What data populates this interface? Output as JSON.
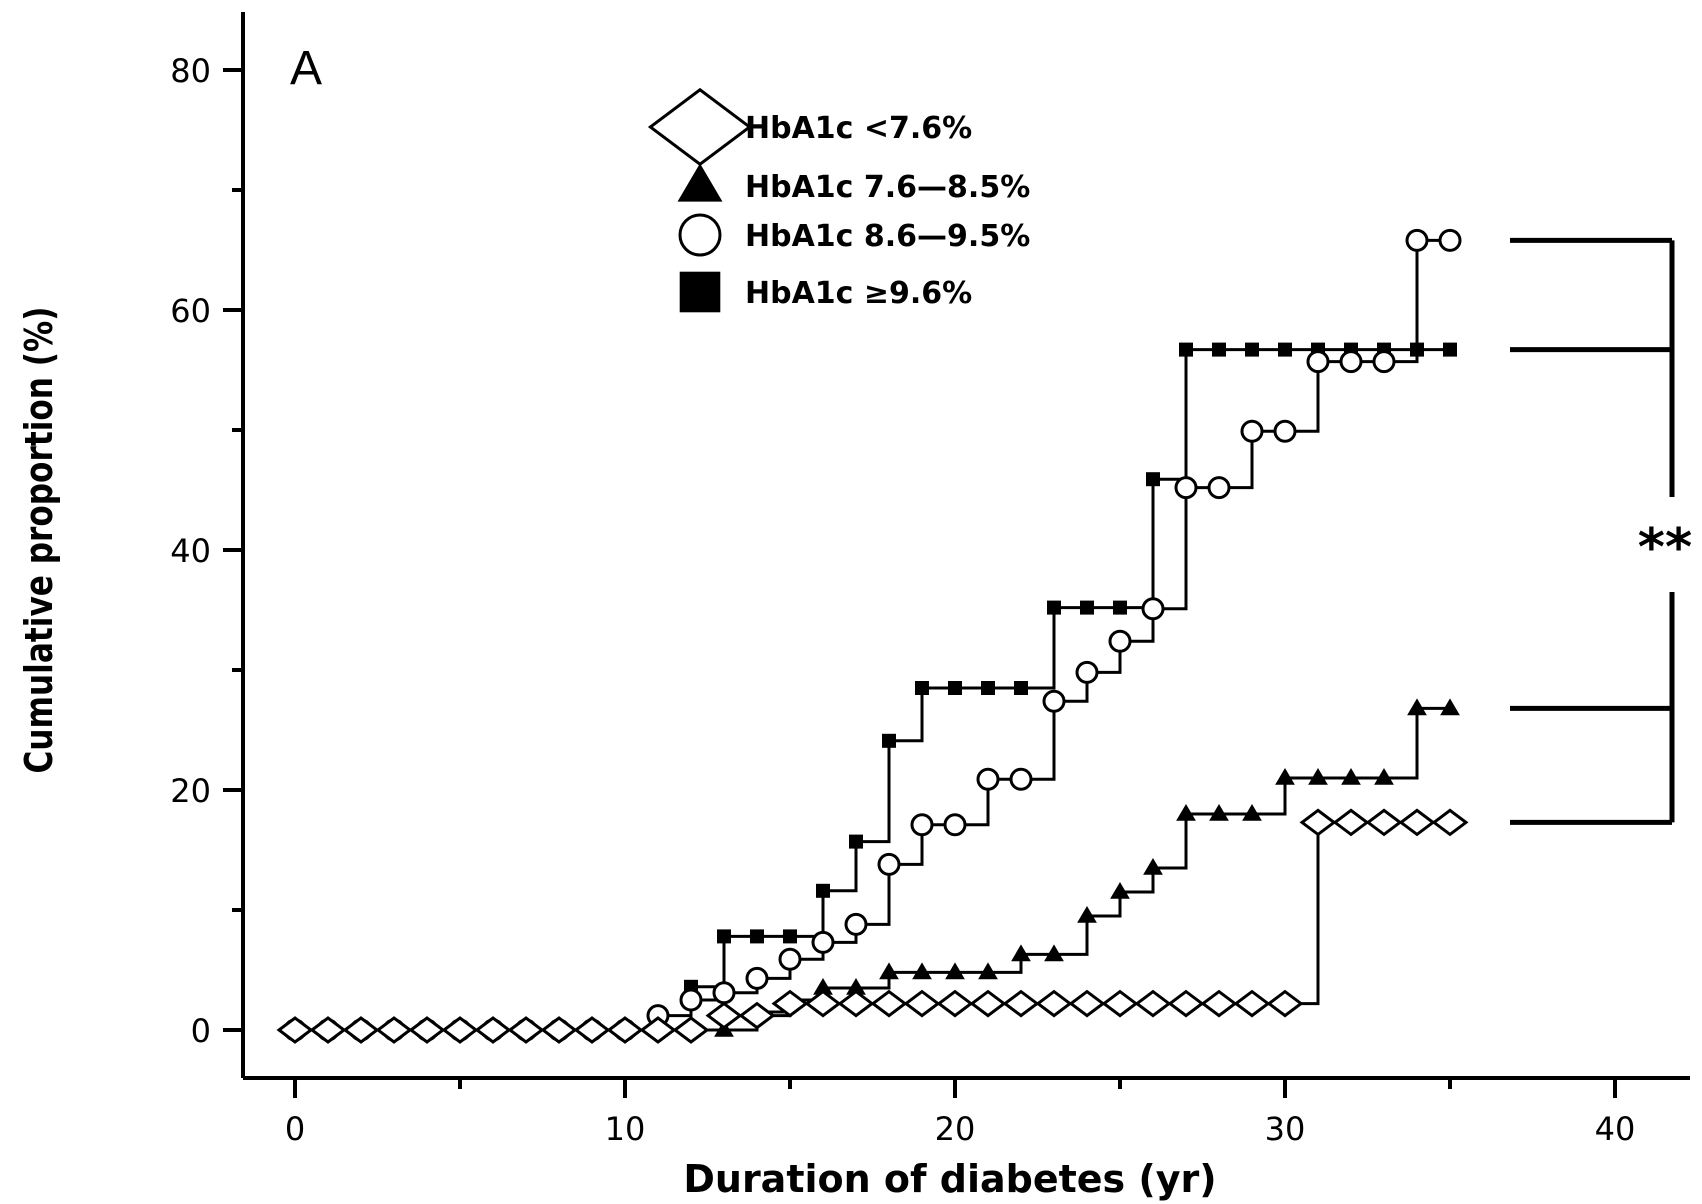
{
  "chart_data": {
    "type": "line",
    "subtype": "step",
    "panel_label": "A",
    "xlabel": "Duration of diabetes (yr)",
    "ylabel": "Cumulative proportion (%)",
    "xlim": [
      -2,
      42
    ],
    "ylim": [
      -4,
      84
    ],
    "xticks": [
      0,
      10,
      20,
      30,
      40
    ],
    "yticks": [
      0,
      20,
      40,
      60,
      80
    ],
    "minor_xticks": [
      5,
      15,
      25,
      35
    ],
    "minor_yticks": [
      10,
      30,
      50,
      70
    ],
    "legend_position": "top-center",
    "series": [
      {
        "name": "HbA1c <7.6%",
        "marker": "diamond-open",
        "x": [
          0,
          1,
          2,
          3,
          4,
          5,
          6,
          7,
          8,
          9,
          10,
          11,
          12,
          13,
          14,
          15,
          16,
          17,
          18,
          19,
          20,
          21,
          22,
          23,
          24,
          25,
          26,
          27,
          28,
          29,
          30,
          31,
          32,
          33,
          34,
          35
        ],
        "y": [
          0,
          0,
          0,
          0,
          0,
          0,
          0,
          0,
          0,
          0,
          0,
          0,
          0,
          1.2,
          1.2,
          2.2,
          2.2,
          2.2,
          2.2,
          2.2,
          2.2,
          2.2,
          2.2,
          2.2,
          2.2,
          2.2,
          2.2,
          2.2,
          2.2,
          2.2,
          2.2,
          17.3,
          17.3,
          17.3,
          17.3,
          17.3
        ]
      },
      {
        "name": "HbA1c 7.6—8.5%",
        "marker": "triangle-filled",
        "x": [
          0,
          1,
          2,
          3,
          4,
          5,
          6,
          7,
          8,
          9,
          10,
          11,
          12,
          13,
          14,
          15,
          16,
          17,
          18,
          19,
          20,
          21,
          22,
          23,
          24,
          25,
          26,
          27,
          28,
          29,
          30,
          31,
          32,
          33,
          34,
          35
        ],
        "y": [
          0,
          0,
          0,
          0,
          0,
          0,
          0,
          0,
          0,
          0,
          0,
          0,
          0,
          0,
          1.5,
          2.5,
          3.5,
          3.5,
          4.8,
          4.8,
          4.8,
          4.8,
          6.3,
          6.3,
          9.5,
          11.5,
          13.5,
          18,
          18,
          18,
          21,
          21,
          21,
          21,
          26.8,
          26.8
        ]
      },
      {
        "name": "HbA1c 8.6—9.5%",
        "marker": "circle-open",
        "x": [
          0,
          1,
          2,
          3,
          4,
          5,
          6,
          7,
          8,
          9,
          10,
          11,
          12,
          13,
          14,
          15,
          16,
          17,
          18,
          19,
          20,
          21,
          22,
          23,
          24,
          25,
          26,
          27,
          28,
          29,
          30,
          31,
          32,
          33,
          34,
          35
        ],
        "y": [
          0,
          0,
          0,
          0,
          0,
          0,
          0,
          0,
          0,
          0,
          0,
          1.2,
          2.5,
          3.1,
          4.3,
          5.9,
          7.3,
          8.8,
          13.8,
          17.1,
          17.1,
          20.9,
          20.9,
          27.4,
          29.8,
          32.4,
          35.1,
          45.2,
          45.2,
          49.9,
          49.9,
          55.7,
          55.7,
          55.7,
          65.8,
          65.8
        ]
      },
      {
        "name": "HbA1c ≥9.6%",
        "marker": "square-filled",
        "x": [
          0,
          1,
          2,
          3,
          4,
          5,
          6,
          7,
          8,
          9,
          10,
          11,
          12,
          13,
          14,
          15,
          16,
          17,
          18,
          19,
          20,
          21,
          22,
          23,
          24,
          25,
          26,
          27,
          28,
          29,
          30,
          31,
          32,
          33,
          34,
          35
        ],
        "y": [
          0,
          0,
          0,
          0,
          0,
          0,
          0,
          0,
          0,
          0,
          0,
          0,
          3.6,
          7.8,
          7.8,
          7.8,
          11.6,
          15.7,
          24.1,
          28.5,
          28.5,
          28.5,
          28.5,
          35.2,
          35.2,
          35.2,
          45.9,
          56.7,
          56.7,
          56.7,
          56.7,
          56.7,
          56.7,
          56.7,
          56.7,
          56.7
        ]
      }
    ],
    "significance": {
      "label": "**",
      "groups": [
        "HbA1c <7.6%",
        "HbA1c 7.6—8.5%",
        "HbA1c 8.6—9.5%",
        "HbA1c ≥9.6%"
      ]
    }
  }
}
